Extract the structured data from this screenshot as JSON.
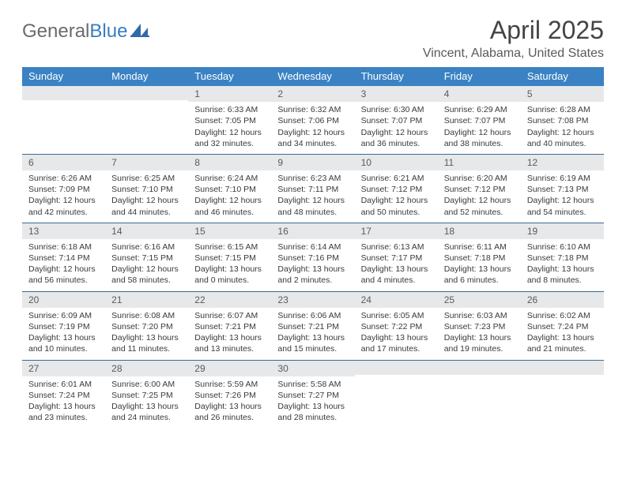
{
  "brand": {
    "part1": "General",
    "part2": "Blue"
  },
  "title": "April 2025",
  "location": "Vincent, Alabama, United States",
  "colors": {
    "header_bg": "#3a82c4",
    "header_text": "#ffffff",
    "daynum_bg": "#e7e8ea",
    "week_border": "#3a6a95",
    "body_text": "#3a3a3a",
    "title_text": "#444444",
    "logo_gray": "#6b6b6b",
    "logo_blue": "#3a7cc0"
  },
  "day_names": [
    "Sunday",
    "Monday",
    "Tuesday",
    "Wednesday",
    "Thursday",
    "Friday",
    "Saturday"
  ],
  "weeks": [
    [
      {
        "n": "",
        "sunrise": "",
        "sunset": "",
        "daylight": ""
      },
      {
        "n": "",
        "sunrise": "",
        "sunset": "",
        "daylight": ""
      },
      {
        "n": "1",
        "sunrise": "Sunrise: 6:33 AM",
        "sunset": "Sunset: 7:05 PM",
        "daylight": "Daylight: 12 hours and 32 minutes."
      },
      {
        "n": "2",
        "sunrise": "Sunrise: 6:32 AM",
        "sunset": "Sunset: 7:06 PM",
        "daylight": "Daylight: 12 hours and 34 minutes."
      },
      {
        "n": "3",
        "sunrise": "Sunrise: 6:30 AM",
        "sunset": "Sunset: 7:07 PM",
        "daylight": "Daylight: 12 hours and 36 minutes."
      },
      {
        "n": "4",
        "sunrise": "Sunrise: 6:29 AM",
        "sunset": "Sunset: 7:07 PM",
        "daylight": "Daylight: 12 hours and 38 minutes."
      },
      {
        "n": "5",
        "sunrise": "Sunrise: 6:28 AM",
        "sunset": "Sunset: 7:08 PM",
        "daylight": "Daylight: 12 hours and 40 minutes."
      }
    ],
    [
      {
        "n": "6",
        "sunrise": "Sunrise: 6:26 AM",
        "sunset": "Sunset: 7:09 PM",
        "daylight": "Daylight: 12 hours and 42 minutes."
      },
      {
        "n": "7",
        "sunrise": "Sunrise: 6:25 AM",
        "sunset": "Sunset: 7:10 PM",
        "daylight": "Daylight: 12 hours and 44 minutes."
      },
      {
        "n": "8",
        "sunrise": "Sunrise: 6:24 AM",
        "sunset": "Sunset: 7:10 PM",
        "daylight": "Daylight: 12 hours and 46 minutes."
      },
      {
        "n": "9",
        "sunrise": "Sunrise: 6:23 AM",
        "sunset": "Sunset: 7:11 PM",
        "daylight": "Daylight: 12 hours and 48 minutes."
      },
      {
        "n": "10",
        "sunrise": "Sunrise: 6:21 AM",
        "sunset": "Sunset: 7:12 PM",
        "daylight": "Daylight: 12 hours and 50 minutes."
      },
      {
        "n": "11",
        "sunrise": "Sunrise: 6:20 AM",
        "sunset": "Sunset: 7:12 PM",
        "daylight": "Daylight: 12 hours and 52 minutes."
      },
      {
        "n": "12",
        "sunrise": "Sunrise: 6:19 AM",
        "sunset": "Sunset: 7:13 PM",
        "daylight": "Daylight: 12 hours and 54 minutes."
      }
    ],
    [
      {
        "n": "13",
        "sunrise": "Sunrise: 6:18 AM",
        "sunset": "Sunset: 7:14 PM",
        "daylight": "Daylight: 12 hours and 56 minutes."
      },
      {
        "n": "14",
        "sunrise": "Sunrise: 6:16 AM",
        "sunset": "Sunset: 7:15 PM",
        "daylight": "Daylight: 12 hours and 58 minutes."
      },
      {
        "n": "15",
        "sunrise": "Sunrise: 6:15 AM",
        "sunset": "Sunset: 7:15 PM",
        "daylight": "Daylight: 13 hours and 0 minutes."
      },
      {
        "n": "16",
        "sunrise": "Sunrise: 6:14 AM",
        "sunset": "Sunset: 7:16 PM",
        "daylight": "Daylight: 13 hours and 2 minutes."
      },
      {
        "n": "17",
        "sunrise": "Sunrise: 6:13 AM",
        "sunset": "Sunset: 7:17 PM",
        "daylight": "Daylight: 13 hours and 4 minutes."
      },
      {
        "n": "18",
        "sunrise": "Sunrise: 6:11 AM",
        "sunset": "Sunset: 7:18 PM",
        "daylight": "Daylight: 13 hours and 6 minutes."
      },
      {
        "n": "19",
        "sunrise": "Sunrise: 6:10 AM",
        "sunset": "Sunset: 7:18 PM",
        "daylight": "Daylight: 13 hours and 8 minutes."
      }
    ],
    [
      {
        "n": "20",
        "sunrise": "Sunrise: 6:09 AM",
        "sunset": "Sunset: 7:19 PM",
        "daylight": "Daylight: 13 hours and 10 minutes."
      },
      {
        "n": "21",
        "sunrise": "Sunrise: 6:08 AM",
        "sunset": "Sunset: 7:20 PM",
        "daylight": "Daylight: 13 hours and 11 minutes."
      },
      {
        "n": "22",
        "sunrise": "Sunrise: 6:07 AM",
        "sunset": "Sunset: 7:21 PM",
        "daylight": "Daylight: 13 hours and 13 minutes."
      },
      {
        "n": "23",
        "sunrise": "Sunrise: 6:06 AM",
        "sunset": "Sunset: 7:21 PM",
        "daylight": "Daylight: 13 hours and 15 minutes."
      },
      {
        "n": "24",
        "sunrise": "Sunrise: 6:05 AM",
        "sunset": "Sunset: 7:22 PM",
        "daylight": "Daylight: 13 hours and 17 minutes."
      },
      {
        "n": "25",
        "sunrise": "Sunrise: 6:03 AM",
        "sunset": "Sunset: 7:23 PM",
        "daylight": "Daylight: 13 hours and 19 minutes."
      },
      {
        "n": "26",
        "sunrise": "Sunrise: 6:02 AM",
        "sunset": "Sunset: 7:24 PM",
        "daylight": "Daylight: 13 hours and 21 minutes."
      }
    ],
    [
      {
        "n": "27",
        "sunrise": "Sunrise: 6:01 AM",
        "sunset": "Sunset: 7:24 PM",
        "daylight": "Daylight: 13 hours and 23 minutes."
      },
      {
        "n": "28",
        "sunrise": "Sunrise: 6:00 AM",
        "sunset": "Sunset: 7:25 PM",
        "daylight": "Daylight: 13 hours and 24 minutes."
      },
      {
        "n": "29",
        "sunrise": "Sunrise: 5:59 AM",
        "sunset": "Sunset: 7:26 PM",
        "daylight": "Daylight: 13 hours and 26 minutes."
      },
      {
        "n": "30",
        "sunrise": "Sunrise: 5:58 AM",
        "sunset": "Sunset: 7:27 PM",
        "daylight": "Daylight: 13 hours and 28 minutes."
      },
      {
        "n": "",
        "sunrise": "",
        "sunset": "",
        "daylight": ""
      },
      {
        "n": "",
        "sunrise": "",
        "sunset": "",
        "daylight": ""
      },
      {
        "n": "",
        "sunrise": "",
        "sunset": "",
        "daylight": ""
      }
    ]
  ]
}
